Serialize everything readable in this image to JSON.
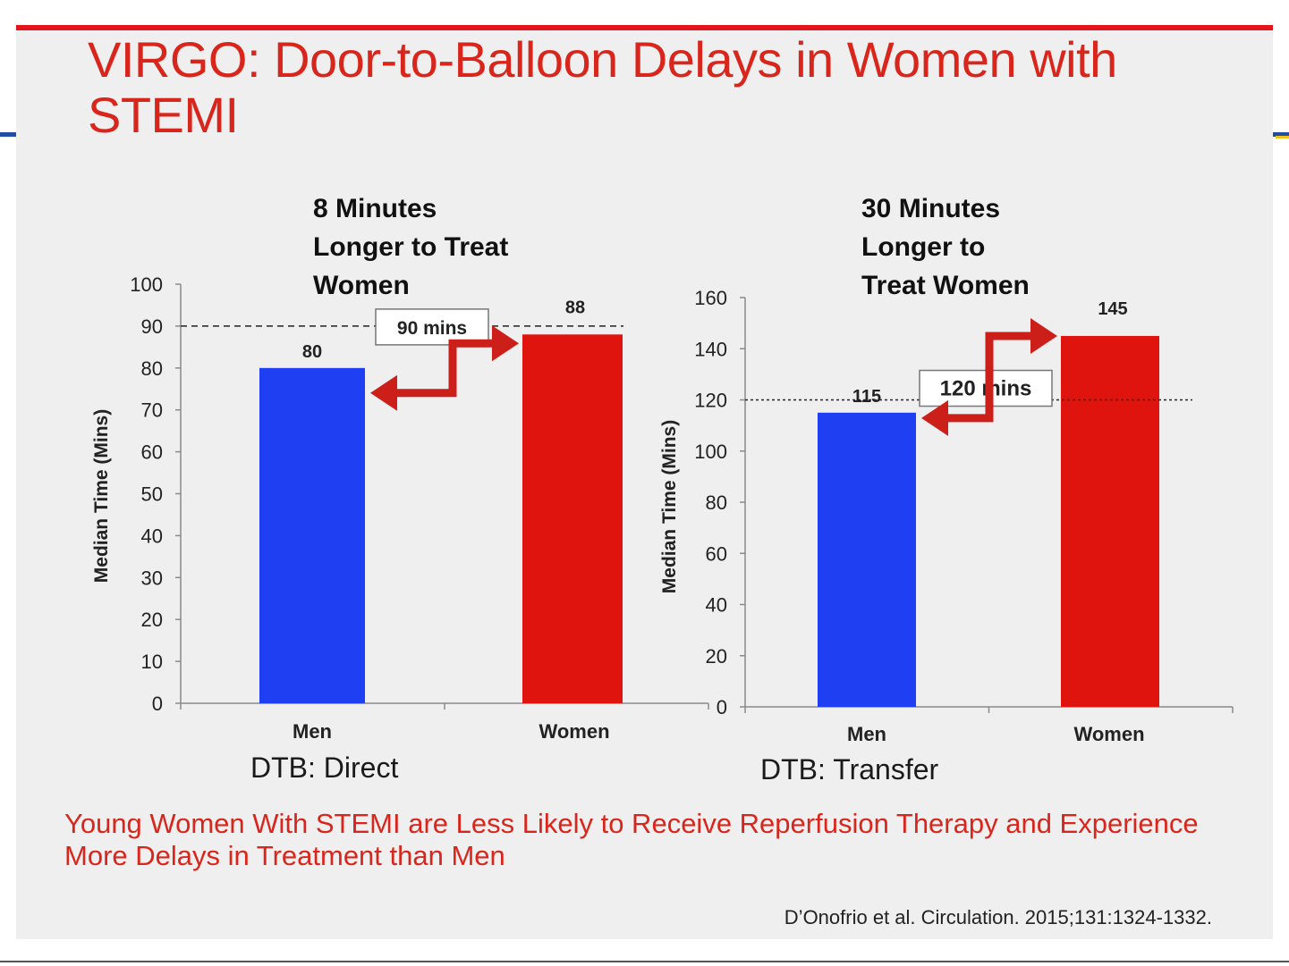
{
  "title": "VIRGO: Door-to-Balloon Delays in Women with STEMI",
  "colors": {
    "men": "#1e3ff2",
    "women": "#e0140f",
    "accent": "#d9261c"
  },
  "chart_data": [
    {
      "type": "bar",
      "categories": [
        "Men",
        "Women"
      ],
      "values": [
        80,
        88
      ],
      "value_labels": [
        "80",
        "88"
      ],
      "ylabel": "Median Time (Mins)",
      "ylim": [
        0,
        100
      ],
      "yticks": [
        0,
        10,
        20,
        30,
        40,
        50,
        60,
        70,
        80,
        90,
        100
      ],
      "reference_line": {
        "value": 90,
        "label": "90 mins"
      },
      "annotation": "8 Minutes\nLonger to Treat\nWomen",
      "group_label": "DTB: Direct"
    },
    {
      "type": "bar",
      "categories": [
        "Men",
        "Women"
      ],
      "values": [
        115,
        145
      ],
      "value_labels": [
        "115",
        "145"
      ],
      "ylabel": "Median Time (Mins)",
      "ylim": [
        0,
        160
      ],
      "yticks": [
        0,
        20,
        40,
        60,
        80,
        100,
        120,
        140,
        160
      ],
      "reference_line": {
        "value": 120,
        "label": "120 mins"
      },
      "annotation": "30 Minutes\nLonger to\nTreat Women",
      "group_label": "DTB: Transfer"
    }
  ],
  "conclusion": "Young Women With STEMI are Less Likely to Receive Reperfusion Therapy and Experience More Delays in Treatment than Men",
  "citation": "D’Onofrio et al. Circulation. 2015;131:1324-1332."
}
